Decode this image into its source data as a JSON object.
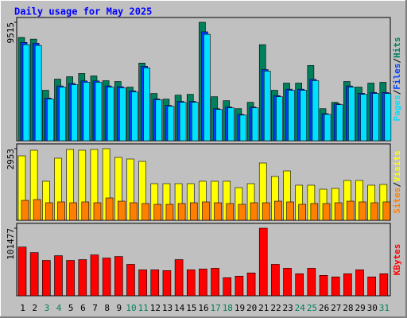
{
  "chart_data": {
    "type": "bar",
    "title": "Daily usage for May 2025",
    "title_color": "#0000ff",
    "categories": [
      "1",
      "2",
      "3",
      "4",
      "5",
      "6",
      "7",
      "8",
      "9",
      "10",
      "11",
      "12",
      "13",
      "14",
      "15",
      "16",
      "17",
      "18",
      "19",
      "20",
      "21",
      "22",
      "23",
      "24",
      "25",
      "26",
      "27",
      "28",
      "29",
      "30",
      "31"
    ],
    "category_colors": [
      "#000000",
      "#000000",
      "#00805c",
      "#00805c",
      "#000000",
      "#000000",
      "#000000",
      "#000000",
      "#000000",
      "#00805c",
      "#00805c",
      "#000000",
      "#000000",
      "#000000",
      "#000000",
      "#000000",
      "#00805c",
      "#00805c",
      "#000000",
      "#000000",
      "#000000",
      "#000000",
      "#000000",
      "#00805c",
      "#00805c",
      "#000000",
      "#000000",
      "#000000",
      "#000000",
      "#000000",
      "#00805c"
    ],
    "panels": [
      {
        "ylim": [
          0,
          9515
        ],
        "yticks": [
          9515
        ],
        "legend_separator": "/",
        "series": [
          {
            "name": "Hits",
            "color": "#00805c",
            "values": [
              8294,
              8165,
              4050,
              4950,
              5143,
              5400,
              5207,
              4822,
              4757,
              4307,
              6236,
              3793,
              3343,
              3664,
              3729,
              9515,
              3536,
              3214,
              2572,
              3086,
              7715,
              4050,
              4629,
              4629,
              6043,
              2572,
              3086,
              4757,
              4307,
              4629,
              4693
            ]
          },
          {
            "name": "Files",
            "color": "#0040ff",
            "values": [
              7900,
              7830,
              3420,
              4400,
              4600,
              4800,
              4800,
              4400,
              4340,
              4010,
              5980,
              3350,
              2830,
              3160,
              3160,
              8750,
              2570,
              2700,
              2110,
              2700,
              5720,
              3620,
              4140,
              4140,
              4930,
              2170,
              2960,
              4400,
              3810,
              3880,
              3880
            ]
          },
          {
            "name": "Pages",
            "color": "#00e0ff",
            "values": [
              7715,
              7650,
              3343,
              4307,
              4500,
              4693,
              4693,
              4307,
              4243,
              3922,
              5850,
              3279,
              2764,
              3086,
              3086,
              8551,
              2507,
              2636,
              2057,
              2636,
              5593,
              3536,
              4050,
              4050,
              4822,
              2122,
              2893,
              4307,
              3729,
              3793,
              3793
            ]
          }
        ]
      },
      {
        "ylim": [
          0,
          2953
        ],
        "yticks": [
          2953
        ],
        "legend_separator": "/",
        "series": [
          {
            "name": "Visits",
            "color": "#ffff00",
            "values": [
              2657,
              2887,
              1608,
              2559,
              2920,
              2887,
              2920,
              2953,
              2592,
              2526,
              2428,
              1509,
              1509,
              1509,
              1509,
              1608,
              1608,
              1608,
              1345,
              1509,
              2362,
              1804,
              2034,
              1444,
              1444,
              1279,
              1312,
              1640,
              1640,
              1444,
              1476
            ]
          },
          {
            "name": "Sites",
            "color": "#ff8000",
            "values": [
              820,
              853,
              722,
              755,
              722,
              755,
              722,
              919,
              787,
              722,
              689,
              656,
              656,
              689,
              722,
              755,
              722,
              689,
              656,
              722,
              722,
              787,
              755,
              656,
              689,
              689,
              722,
              787,
              755,
              722,
              755
            ]
          }
        ]
      },
      {
        "ylim": [
          0,
          101477
        ],
        "yticks": [
          101477
        ],
        "series": [
          {
            "name": "KBytes",
            "color": "#ff0000",
            "values": [
              73160,
              64900,
              53100,
              60180,
              53100,
              54280,
              61360,
              56640,
              59000,
              47200,
              38940,
              38940,
              37760,
              54280,
              38940,
              40120,
              41300,
              27140,
              29500,
              34220,
              101477,
              47200,
              41300,
              33040,
              41300,
              30680,
              28320,
              33040,
              38940,
              28320,
              33040
            ]
          }
        ]
      }
    ]
  }
}
